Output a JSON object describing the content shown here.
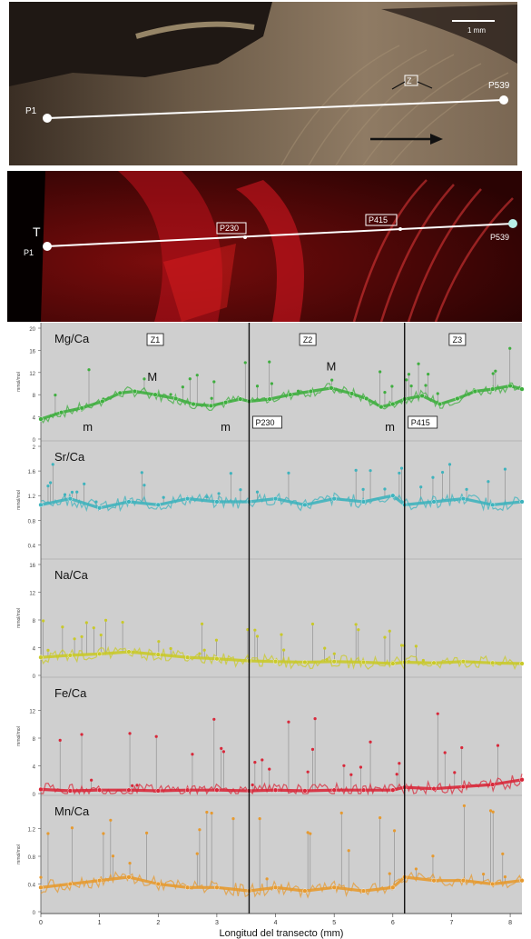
{
  "photo_panel": {
    "scale_label": "1 mm",
    "p1_label": "P1",
    "p539_label": "P539",
    "z_box_label": "Z"
  },
  "fluor_panel": {
    "t_label": "T",
    "p1_label": "P1",
    "p230_label": "P230",
    "p415_label": "P415",
    "p539_label": "P539"
  },
  "colors": {
    "mg": "#3fae3f",
    "sr": "#3fb3bd",
    "na": "#c9c92a",
    "fe": "#d8283a",
    "mn": "#e69a30",
    "plot_bg": "#cfcfcf"
  },
  "chart_data": {
    "type": "line",
    "xlabel": "Longitud del transecto (mm)",
    "xlim": [
      0,
      8.2
    ],
    "xticks": [
      "0",
      "1",
      "2",
      "3",
      "4",
      "5",
      "6",
      "7",
      "8"
    ],
    "boundaries": [
      3.55,
      6.2
    ],
    "zones": [
      {
        "label": "Z1",
        "x": 1.95
      },
      {
        "label": "Z2",
        "x": 4.55
      },
      {
        "label": "Z3",
        "x": 7.1
      }
    ],
    "boundary_labels": [
      "P230",
      "P415"
    ],
    "panels": [
      {
        "name": "Mg/Ca",
        "ylabel": "mmol/mol",
        "ylim": [
          0,
          20
        ],
        "yticks": [
          "0",
          "4",
          "8",
          "12",
          "16",
          "20"
        ],
        "color_key": "mg",
        "annotations": [
          {
            "text": "M",
            "x": 1.9,
            "y": 10.5
          },
          {
            "text": "m",
            "x": 0.8,
            "y": 1.5
          },
          {
            "text": "m",
            "x": 3.15,
            "y": 1.5
          },
          {
            "text": "M",
            "x": 4.95,
            "y": 12.4
          },
          {
            "text": "m",
            "x": 5.95,
            "y": 1.5
          }
        ],
        "x": [
          0,
          0.35,
          0.7,
          1.05,
          1.35,
          1.6,
          1.95,
          2.3,
          2.6,
          2.9,
          3.15,
          3.4,
          3.55,
          3.9,
          4.25,
          4.6,
          4.95,
          5.3,
          5.55,
          5.8,
          6.0,
          6.2,
          6.5,
          6.8,
          7.1,
          7.4,
          7.7,
          8.0,
          8.2
        ],
        "y": [
          3.6,
          4.8,
          5.6,
          6.8,
          8.3,
          8.6,
          8.0,
          7.3,
          6.3,
          6.0,
          6.6,
          7.2,
          6.8,
          7.2,
          8.0,
          8.6,
          9.2,
          8.2,
          7.3,
          5.8,
          6.3,
          7.2,
          7.8,
          6.3,
          7.3,
          8.6,
          9.0,
          9.6,
          9.0
        ]
      },
      {
        "name": "Sr/Ca",
        "ylabel": "mmol/mol",
        "ylim": [
          0.2,
          2.0
        ],
        "yticks": [
          "0.4",
          "0.8",
          "1.2",
          "1.6",
          "2"
        ],
        "color_key": "sr",
        "x": [
          0,
          0.5,
          1.0,
          1.5,
          2.0,
          2.5,
          3.0,
          3.55,
          4.0,
          4.5,
          5.0,
          5.5,
          6.0,
          6.2,
          6.7,
          7.2,
          7.7,
          8.2
        ],
        "y": [
          1.05,
          1.15,
          1.0,
          1.1,
          1.05,
          1.15,
          1.1,
          1.1,
          1.15,
          1.05,
          1.15,
          1.1,
          1.2,
          1.05,
          1.1,
          1.15,
          1.05,
          1.1
        ]
      },
      {
        "name": "Na/Ca",
        "ylabel": "mmol/mol",
        "ylim": [
          0,
          16
        ],
        "yticks": [
          "0",
          "4",
          "8",
          "12",
          "16"
        ],
        "color_key": "na",
        "x": [
          0,
          0.5,
          1.0,
          1.5,
          2.0,
          2.5,
          3.0,
          3.55,
          4.0,
          4.5,
          5.0,
          5.5,
          6.0,
          6.2,
          6.7,
          7.2,
          7.7,
          8.2
        ],
        "y": [
          2.6,
          2.9,
          3.1,
          3.4,
          3.0,
          2.6,
          2.4,
          2.1,
          2.0,
          1.9,
          2.0,
          1.9,
          1.7,
          1.9,
          1.8,
          2.0,
          1.8,
          1.7
        ]
      },
      {
        "name": "Fe/Ca",
        "ylabel": "mmol/mol",
        "ylim": [
          0,
          16
        ],
        "yticks": [
          "0",
          "4",
          "8",
          "12"
        ],
        "color_key": "fe",
        "x": [
          0,
          0.5,
          1.0,
          1.5,
          2.0,
          2.5,
          3.0,
          3.55,
          4.0,
          4.5,
          5.0,
          5.5,
          6.0,
          6.2,
          6.7,
          7.2,
          7.7,
          8.2
        ],
        "y": [
          0.6,
          0.4,
          0.5,
          0.5,
          0.4,
          0.5,
          0.5,
          0.4,
          0.5,
          0.4,
          0.5,
          0.5,
          0.5,
          0.9,
          0.7,
          1.0,
          1.3,
          2.0
        ]
      },
      {
        "name": "Mn/Ca",
        "ylabel": "mmol/mol",
        "ylim": [
          0,
          1.6
        ],
        "yticks": [
          "0",
          "0.4",
          "0.8",
          "1.2"
        ],
        "color_key": "mn",
        "x": [
          0,
          0.5,
          1.0,
          1.5,
          2.0,
          2.5,
          3.0,
          3.55,
          4.0,
          4.5,
          5.0,
          5.5,
          6.0,
          6.2,
          6.7,
          7.2,
          7.7,
          8.2
        ],
        "y": [
          0.35,
          0.4,
          0.45,
          0.5,
          0.4,
          0.35,
          0.35,
          0.3,
          0.35,
          0.3,
          0.35,
          0.3,
          0.35,
          0.5,
          0.45,
          0.45,
          0.4,
          0.45
        ]
      }
    ]
  }
}
